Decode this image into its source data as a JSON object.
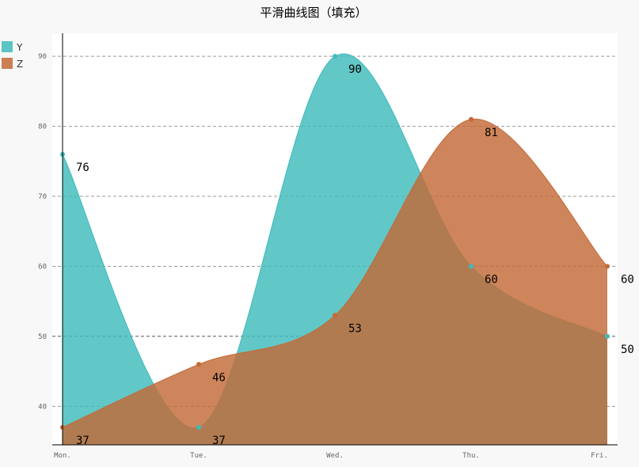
{
  "chart_data": {
    "type": "area",
    "title": "平滑曲线图（填充）",
    "categories": [
      "Mon.",
      "Tue.",
      "Wed.",
      "Thu.",
      "Fri."
    ],
    "y_ticks": [
      40,
      50,
      60,
      70,
      80,
      90
    ],
    "ylim": [
      34.5,
      93.3
    ],
    "smooth": true,
    "fill": true,
    "grid": "horizontal dashed",
    "legend_position": "top-left",
    "series": [
      {
        "name": "Y",
        "values": [
          76,
          37,
          90,
          60,
          50
        ],
        "color": "#3fbbbb"
      },
      {
        "name": "Z",
        "values": [
          37,
          46,
          53,
          81,
          60
        ],
        "color": "#c36a37"
      }
    ]
  }
}
